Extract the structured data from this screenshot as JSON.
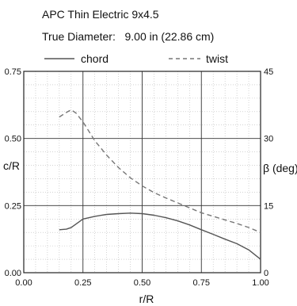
{
  "chart_data": {
    "type": "line",
    "title": "APC Thin Electric 9x4.5",
    "subtitle": "True Diameter:   9.00 in (22.86 cm)",
    "xlabel": "r/R",
    "ylabel": "c/R",
    "y2label": "β (deg)",
    "xlim": [
      0,
      1
    ],
    "ylim": [
      0,
      0.75
    ],
    "y2lim": [
      0,
      45
    ],
    "x_ticks": [
      "0.00",
      "0.25",
      "0.50",
      "0.75",
      "1.00"
    ],
    "y_ticks": [
      "0.00",
      "0.25",
      "0.50",
      "0.75"
    ],
    "y2_ticks": [
      "0",
      "15",
      "30",
      "45"
    ],
    "grid": true,
    "legend_position": "top",
    "series": [
      {
        "name": "chord",
        "axis": "left",
        "style": "solid",
        "color": "#555555",
        "points": [
          [
            0.15,
            0.16
          ],
          [
            0.18,
            0.162
          ],
          [
            0.2,
            0.168
          ],
          [
            0.25,
            0.2
          ],
          [
            0.3,
            0.21
          ],
          [
            0.35,
            0.217
          ],
          [
            0.4,
            0.22
          ],
          [
            0.45,
            0.222
          ],
          [
            0.5,
            0.22
          ],
          [
            0.55,
            0.214
          ],
          [
            0.6,
            0.205
          ],
          [
            0.65,
            0.193
          ],
          [
            0.7,
            0.178
          ],
          [
            0.75,
            0.16
          ],
          [
            0.8,
            0.143
          ],
          [
            0.85,
            0.125
          ],
          [
            0.9,
            0.108
          ],
          [
            0.95,
            0.085
          ],
          [
            1.0,
            0.05
          ]
        ]
      },
      {
        "name": "twist",
        "axis": "right",
        "style": "dashed",
        "color": "#777777",
        "points": [
          [
            0.15,
            34.8
          ],
          [
            0.18,
            35.8
          ],
          [
            0.2,
            36.4
          ],
          [
            0.22,
            35.7
          ],
          [
            0.25,
            33.7
          ],
          [
            0.3,
            29.5
          ],
          [
            0.35,
            26.3
          ],
          [
            0.4,
            23.5
          ],
          [
            0.45,
            21.2
          ],
          [
            0.5,
            19.4
          ],
          [
            0.55,
            17.9
          ],
          [
            0.6,
            16.7
          ],
          [
            0.65,
            15.6
          ],
          [
            0.7,
            14.5
          ],
          [
            0.75,
            13.4
          ],
          [
            0.8,
            12.6
          ],
          [
            0.85,
            11.8
          ],
          [
            0.9,
            11.0
          ],
          [
            0.95,
            10.1
          ],
          [
            1.0,
            9.0
          ]
        ]
      }
    ]
  }
}
